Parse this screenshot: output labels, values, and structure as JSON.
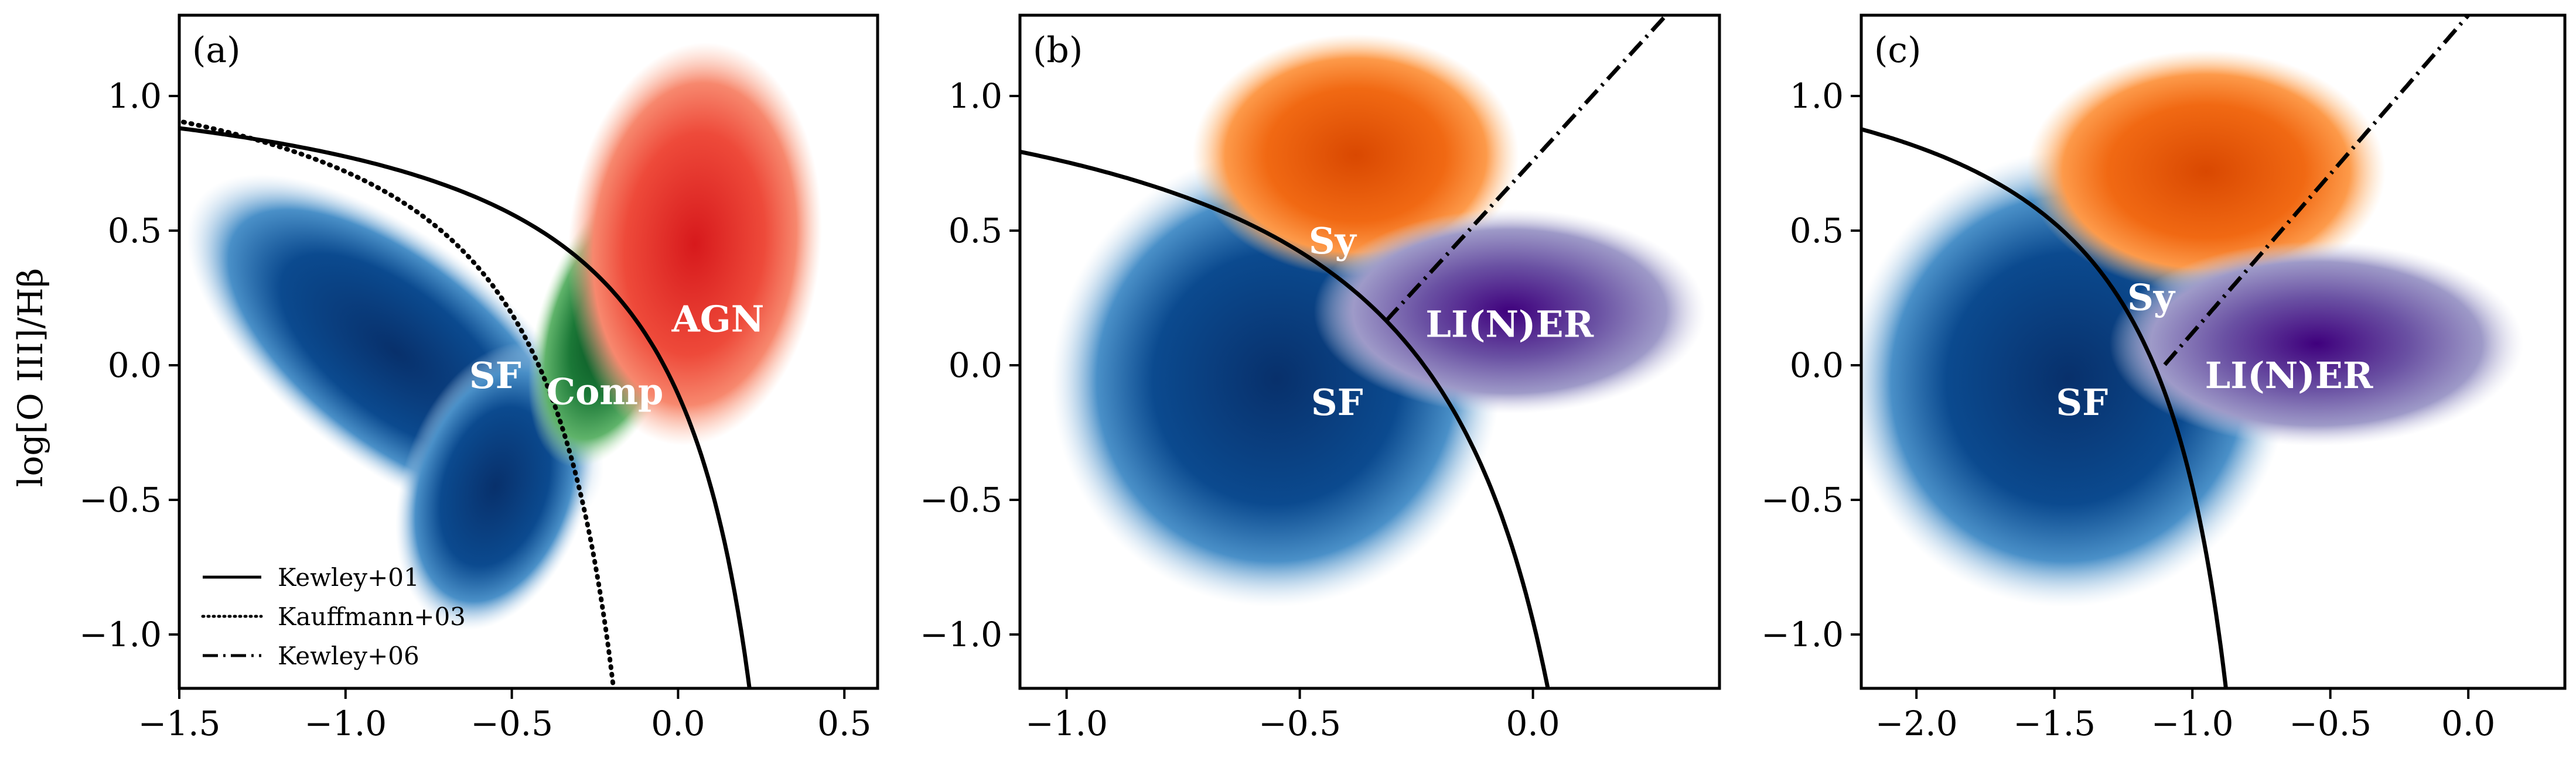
{
  "figure": {
    "ylabel": "log[O III]/Hβ",
    "legend": {
      "placement": "lower-left",
      "entries": [
        {
          "label": "Kewley+01",
          "style": "solid"
        },
        {
          "label": "Kauffmann+03",
          "style": "dotted"
        },
        {
          "label": "Kewley+06",
          "style": "dashdot"
        }
      ]
    }
  },
  "chart_data": [
    {
      "type": "heatmap",
      "panel_label": "(a)",
      "xlim": [
        -1.5,
        0.6
      ],
      "ylim": [
        -1.2,
        1.3
      ],
      "xticks": [
        -1.5,
        -1.0,
        -0.5,
        0.0,
        0.5
      ],
      "xtick_labels": [
        "−1.5",
        "−1.0",
        "−0.5",
        "0.0",
        "0.5"
      ],
      "yticks": [
        -1.0,
        -0.5,
        0.0,
        0.5,
        1.0
      ],
      "ytick_labels": [
        "−1.0",
        "−0.5",
        "0.0",
        "0.5",
        "1.0"
      ],
      "curves": [
        "Kewley+01",
        "Kauffmann+03"
      ],
      "regions": [
        {
          "label": "SF",
          "x": -0.55,
          "y": -0.05,
          "color": "#08306b"
        },
        {
          "label": "Comp",
          "x": -0.22,
          "y": -0.11,
          "color": "#00441b"
        },
        {
          "label": "AGN",
          "x": 0.12,
          "y": 0.16,
          "color": "#cb181d"
        }
      ]
    },
    {
      "type": "heatmap",
      "panel_label": "(b)",
      "xlim": [
        -1.1,
        0.4
      ],
      "ylim": [
        -1.2,
        1.3
      ],
      "xticks": [
        -1.0,
        -0.5,
        0.0
      ],
      "xtick_labels": [
        "−1.0",
        "−0.5",
        "0.0"
      ],
      "yticks": [
        -1.0,
        -0.5,
        0.0,
        0.5,
        1.0
      ],
      "ytick_labels": [
        "−1.0",
        "−0.5",
        "0.0",
        "0.5",
        "1.0"
      ],
      "curves": [
        "Kewley+01",
        "Kewley+06"
      ],
      "regions": [
        {
          "label": "SF",
          "x": -0.42,
          "y": -0.15,
          "color": "#08306b"
        },
        {
          "label": "Sy",
          "x": -0.43,
          "y": 0.45,
          "color": "#d94801"
        },
        {
          "label": "LI(N)ER",
          "x": -0.05,
          "y": 0.14,
          "color": "#3f007d"
        }
      ]
    },
    {
      "type": "heatmap",
      "panel_label": "(c)",
      "xlim": [
        -2.2,
        0.35
      ],
      "ylim": [
        -1.2,
        1.3
      ],
      "xticks": [
        -2.0,
        -1.5,
        -1.0,
        -0.5,
        0.0
      ],
      "xtick_labels": [
        "−2.0",
        "−1.5",
        "−1.0",
        "−0.5",
        "0.0"
      ],
      "yticks": [
        -1.0,
        -0.5,
        0.0,
        0.5,
        1.0
      ],
      "ytick_labels": [
        "−1.0",
        "−0.5",
        "0.0",
        "0.5",
        "1.0"
      ],
      "curves": [
        "Kewley+01",
        "Kewley+06"
      ],
      "regions": [
        {
          "label": "SF",
          "x": -1.4,
          "y": -0.15,
          "color": "#08306b"
        },
        {
          "label": "Sy",
          "x": -1.15,
          "y": 0.24,
          "color": "#d94801"
        },
        {
          "label": "LI(N)ER",
          "x": -0.65,
          "y": -0.05,
          "color": "#3f007d"
        }
      ]
    }
  ]
}
